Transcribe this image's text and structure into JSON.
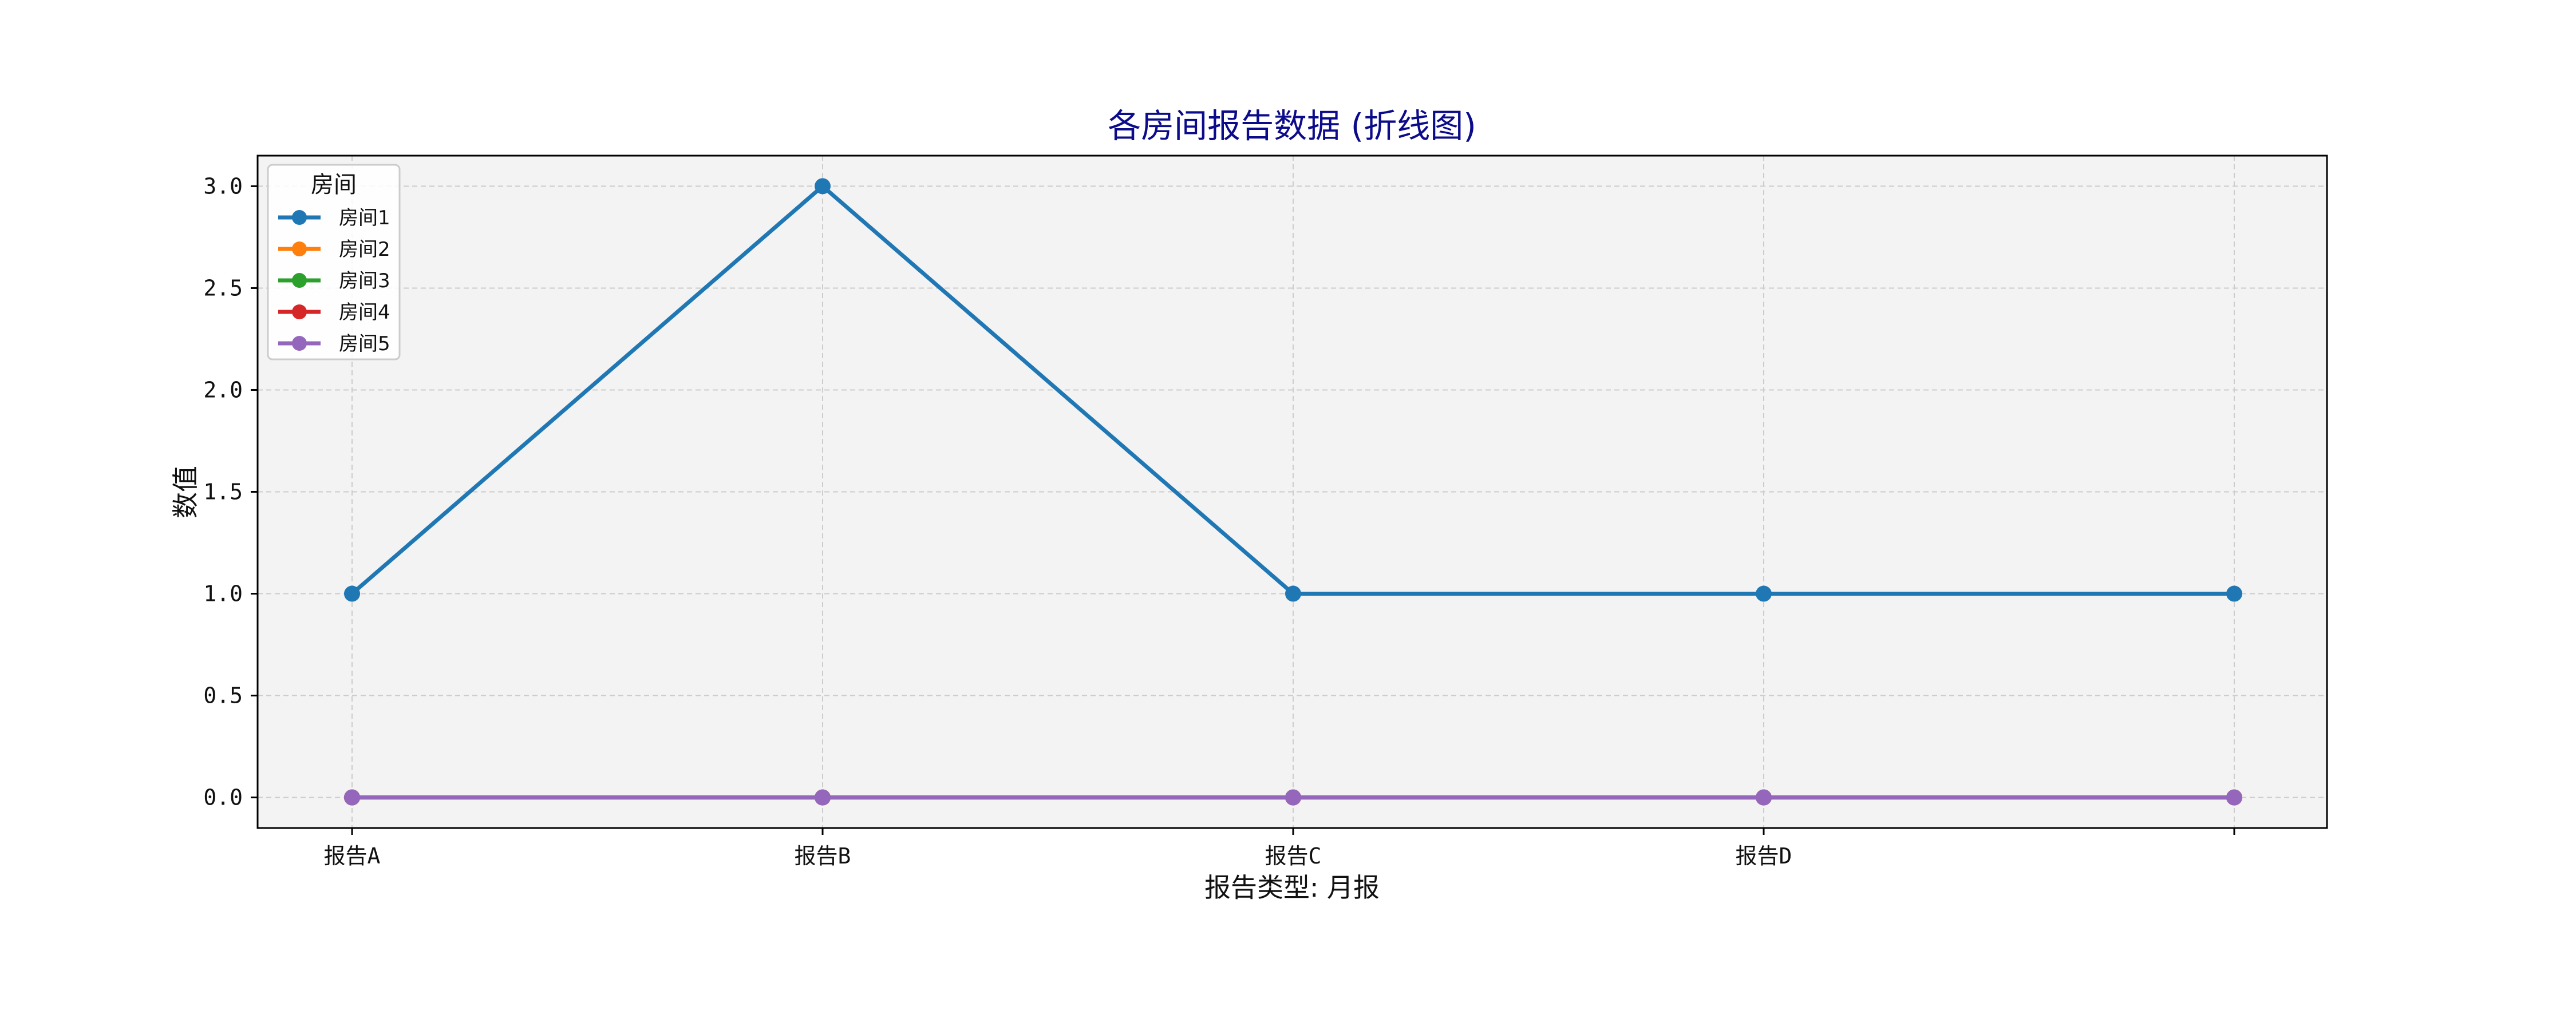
{
  "chart_data": {
    "type": "line",
    "title": "各房间报告数据 (折线图)",
    "xlabel": "报告类型: 月报",
    "ylabel": "数值",
    "categories": [
      "报告A",
      "报告B",
      "报告C",
      "报告D",
      ""
    ],
    "ylim": [
      -0.15,
      3.15
    ],
    "yticks": [
      "0.0",
      "0.5",
      "1.0",
      "1.5",
      "2.0",
      "2.5",
      "3.0"
    ],
    "ytick_values": [
      0,
      0.5,
      1.0,
      1.5,
      2.0,
      2.5,
      3.0
    ],
    "grid": true,
    "legend": {
      "title": "房间",
      "placement": "top-left"
    },
    "series": [
      {
        "name": "房间1",
        "color": "#1f77b4",
        "values": [
          1,
          3,
          1,
          1,
          1
        ]
      },
      {
        "name": "房间2",
        "color": "#ff7f0e",
        "values": [
          0,
          0,
          0,
          0,
          0
        ]
      },
      {
        "name": "房间3",
        "color": "#2ca02c",
        "values": [
          0,
          0,
          0,
          0,
          0
        ]
      },
      {
        "name": "房间4",
        "color": "#d62728",
        "values": [
          0,
          0,
          0,
          0,
          0
        ]
      },
      {
        "name": "房间5",
        "color": "#9467bd",
        "values": [
          0,
          0,
          0,
          0,
          0
        ]
      }
    ],
    "colors": {
      "plot_background": "#f3f3f3",
      "grid": "#cccccc",
      "title": "#0b0b8b"
    }
  }
}
